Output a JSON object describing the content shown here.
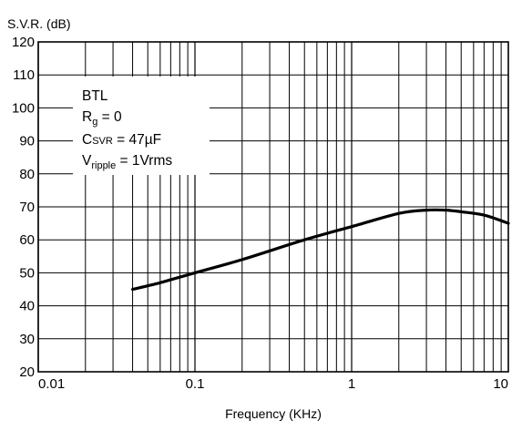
{
  "chart_data": {
    "type": "line",
    "title": "",
    "ylabel": "S.V.R. (dB)",
    "xlabel": "Frequency (KHz)",
    "xscale": "log",
    "xlim": [
      0.01,
      10
    ],
    "ylim": [
      20,
      120
    ],
    "x_ticks": [
      "0.01",
      "0.1",
      "1",
      "10"
    ],
    "y_ticks": [
      "20",
      "30",
      "40",
      "50",
      "60",
      "70",
      "80",
      "90",
      "100",
      "110",
      "120"
    ],
    "grid": true,
    "series": [
      {
        "x": [
          0.04,
          0.06,
          0.1,
          0.2,
          0.5,
          1,
          2,
          3,
          4,
          5,
          7,
          10
        ],
        "y": [
          45,
          47,
          50,
          54,
          60,
          64,
          68,
          69,
          69,
          68.5,
          67.5,
          65
        ],
        "color": "#000000"
      }
    ],
    "annotation": {
      "line1": "BTL",
      "rg_main": "R",
      "rg_sub": "g",
      "rg_rest": " = 0",
      "csvr_main": "C",
      "csvr_sub": "SVR",
      "csvr_rest": " = 47µF",
      "vr_main": "V",
      "vr_sub": "ripple",
      "vr_rest": " = 1Vrms"
    }
  }
}
